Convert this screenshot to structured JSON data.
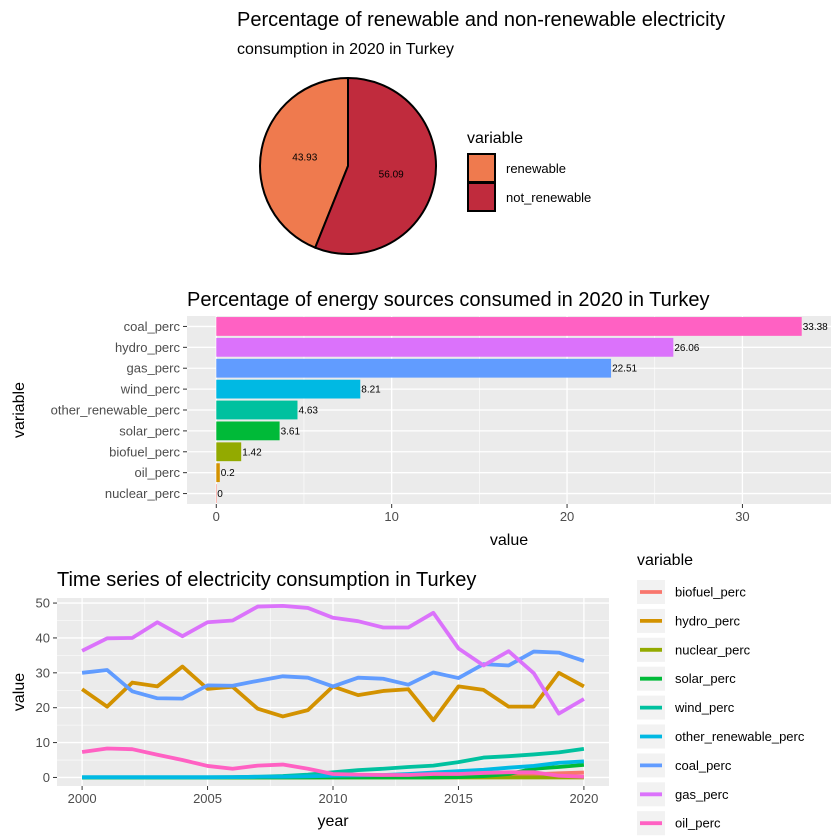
{
  "colors": {
    "panel_bg": "#ebebeb",
    "grid_major": "#ffffff",
    "pie_renewable": "#ef7a4e",
    "pie_not_renewable": "#c02b3d"
  },
  "chart_data": [
    {
      "type": "pie",
      "title": "Percentage of renewable and non-renewable electricity",
      "subtitle": "consumption in 2020 in Turkey",
      "legend_title": "variable",
      "legend_position": "right",
      "slices": [
        {
          "name": "renewable",
          "value": 43.93,
          "label": "43.93",
          "color": "#ef7a4e"
        },
        {
          "name": "not_renewable",
          "value": 56.09,
          "label": "56.09",
          "color": "#c02b3d"
        }
      ]
    },
    {
      "type": "bar",
      "orientation": "horizontal",
      "title": "Percentage of energy sources consumed in 2020 in Turkey",
      "xlabel": "value",
      "ylabel": "variable",
      "xlim": [
        0,
        33.38
      ],
      "xticks": [
        0,
        10,
        20,
        30
      ],
      "grid": true,
      "categories": [
        "coal_perc",
        "hydro_perc",
        "gas_perc",
        "wind_perc",
        "other_renewable_perc",
        "solar_perc",
        "biofuel_perc",
        "oil_perc",
        "nuclear_perc"
      ],
      "values": [
        33.38,
        26.06,
        22.51,
        8.21,
        4.63,
        3.61,
        1.42,
        0.2,
        0
      ],
      "labels": [
        "33.38",
        "26.06",
        "22.51",
        "8.21",
        "4.63",
        "3.61",
        "1.42",
        "0.2",
        "0"
      ],
      "colors": [
        "#ff61c3",
        "#db72fb",
        "#619cff",
        "#00b9e3",
        "#00c19f",
        "#00ba38",
        "#93aa00",
        "#d39200",
        "#f8766d"
      ]
    },
    {
      "type": "line",
      "title": "Time series of electricity consumption in Turkey",
      "xlabel": "year",
      "ylabel": "value",
      "xlim": [
        2000,
        2020
      ],
      "ylim": [
        0,
        50
      ],
      "xticks": [
        2000,
        2005,
        2010,
        2015,
        2020
      ],
      "yticks": [
        0,
        10,
        20,
        30,
        40,
        50
      ],
      "grid": true,
      "legend_title": "variable",
      "legend_position": "right",
      "x": [
        2000,
        2001,
        2002,
        2003,
        2004,
        2005,
        2006,
        2007,
        2008,
        2009,
        2010,
        2011,
        2012,
        2013,
        2014,
        2015,
        2016,
        2017,
        2018,
        2019,
        2020
      ],
      "series": [
        {
          "name": "biofuel_perc",
          "color": "#f8766d",
          "values": [
            0,
            0,
            0,
            0,
            0,
            0,
            0,
            0,
            0,
            0,
            0.1,
            0.1,
            0.2,
            0.2,
            0.3,
            0.4,
            0.5,
            0.7,
            0.9,
            1.2,
            1.4
          ]
        },
        {
          "name": "hydro_perc",
          "color": "#d39200",
          "values": [
            25.3,
            20.3,
            27.2,
            26.1,
            31.8,
            25.4,
            26.0,
            19.7,
            17.5,
            19.3,
            26.1,
            23.6,
            24.8,
            25.3,
            16.4,
            26.1,
            25.1,
            20.3,
            20.3,
            30.0,
            26.1
          ]
        },
        {
          "name": "nuclear_perc",
          "color": "#93aa00",
          "values": [
            0,
            0,
            0,
            0,
            0,
            0,
            0,
            0,
            0,
            0,
            0,
            0,
            0,
            0,
            0,
            0,
            0,
            0,
            0,
            0,
            0
          ]
        },
        {
          "name": "solar_perc",
          "color": "#00ba38",
          "values": [
            0,
            0,
            0,
            0,
            0,
            0,
            0,
            0,
            0,
            0,
            0,
            0,
            0,
            0,
            0,
            0.1,
            0.4,
            1.0,
            2.5,
            3.0,
            3.6
          ]
        },
        {
          "name": "wind_perc",
          "color": "#00c19f",
          "values": [
            0,
            0,
            0,
            0,
            0,
            0,
            0.1,
            0.2,
            0.4,
            0.8,
            1.5,
            2.1,
            2.5,
            3.0,
            3.4,
            4.4,
            5.7,
            6.1,
            6.6,
            7.2,
            8.2
          ]
        },
        {
          "name": "other_renewable_perc",
          "color": "#00b9e3",
          "values": [
            0.1,
            0.1,
            0.1,
            0.1,
            0.1,
            0.1,
            0.1,
            0.2,
            0.2,
            0.3,
            0.5,
            0.6,
            0.7,
            1.0,
            1.4,
            1.8,
            2.2,
            2.8,
            3.3,
            4.2,
            4.6
          ]
        },
        {
          "name": "coal_perc",
          "color": "#619cff",
          "values": [
            30.0,
            30.8,
            24.7,
            22.7,
            22.6,
            26.4,
            26.3,
            27.7,
            29.0,
            28.6,
            26.1,
            28.6,
            28.3,
            26.6,
            30.1,
            28.5,
            32.5,
            32.1,
            36.1,
            35.8,
            33.4
          ]
        },
        {
          "name": "gas_perc",
          "color": "#db72fb",
          "values": [
            36.3,
            39.9,
            40.0,
            44.5,
            40.5,
            44.5,
            45.0,
            49.0,
            49.2,
            48.6,
            45.8,
            44.8,
            43.0,
            43.0,
            47.2,
            37.0,
            32.1,
            36.2,
            29.9,
            18.3,
            22.5
          ]
        },
        {
          "name": "oil_perc",
          "color": "#ff61c3",
          "values": [
            7.3,
            8.3,
            8.1,
            6.5,
            5.0,
            3.3,
            2.5,
            3.4,
            3.7,
            2.5,
            1.0,
            0.8,
            0.7,
            0.7,
            1.0,
            1.0,
            1.3,
            1.5,
            1.5,
            0.5,
            0.2
          ]
        }
      ]
    }
  ]
}
